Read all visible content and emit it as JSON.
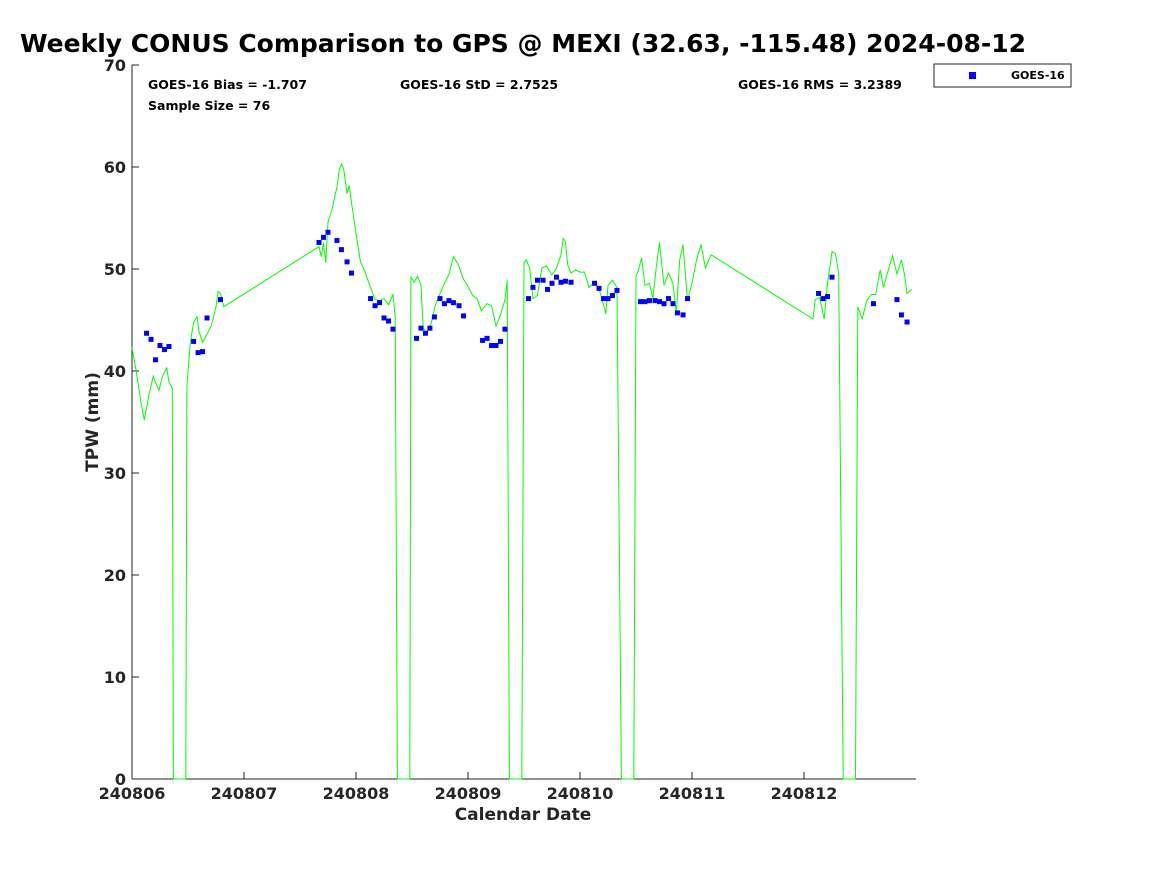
{
  "chart_data": {
    "type": "scatter",
    "title": "Weekly CONUS Comparison to GPS @ MEXI (32.63, -115.48) 2024-08-12",
    "xlabel": "Calendar Date",
    "ylabel": "TPW (mm)",
    "xlim": [
      240806,
      240813
    ],
    "ylim": [
      0,
      70
    ],
    "xticks": [
      "240806",
      "240807",
      "240808",
      "240809",
      "240810",
      "240811",
      "240812"
    ],
    "yticks": [
      0,
      10,
      20,
      30,
      40,
      50,
      60,
      70
    ],
    "legend": {
      "position": "top-right",
      "entries": [
        "GOES-16"
      ]
    },
    "stats": {
      "bias": "GOES-16 Bias = -1.707",
      "std": "GOES-16 StD = 2.7525",
      "rms": "GOES-16 RMS = 3.2389",
      "sample": "Sample Size = 76"
    },
    "series": [
      {
        "name": "GOES-16",
        "kind": "scatter",
        "color": "#0000ff",
        "points": [
          [
            240806.13,
            43.7
          ],
          [
            240806.17,
            43.1
          ],
          [
            240806.21,
            41.1
          ],
          [
            240806.25,
            42.5
          ],
          [
            240806.29,
            42.1
          ],
          [
            240806.33,
            42.4
          ],
          [
            240806.55,
            42.9
          ],
          [
            240806.59,
            41.8
          ],
          [
            240806.63,
            41.9
          ],
          [
            240806.67,
            45.2
          ],
          [
            240806.79,
            47.0
          ],
          [
            240807.67,
            52.6
          ],
          [
            240807.71,
            53.1
          ],
          [
            240807.75,
            53.6
          ],
          [
            240807.83,
            52.8
          ],
          [
            240807.87,
            51.9
          ],
          [
            240807.92,
            50.7
          ],
          [
            240807.96,
            49.6
          ],
          [
            240808.13,
            47.1
          ],
          [
            240808.17,
            46.4
          ],
          [
            240808.21,
            46.7
          ],
          [
            240808.25,
            45.2
          ],
          [
            240808.29,
            44.9
          ],
          [
            240808.33,
            44.1
          ],
          [
            240808.54,
            43.2
          ],
          [
            240808.58,
            44.2
          ],
          [
            240808.62,
            43.7
          ],
          [
            240808.66,
            44.2
          ],
          [
            240808.7,
            45.3
          ],
          [
            240808.75,
            47.1
          ],
          [
            240808.79,
            46.6
          ],
          [
            240808.83,
            46.9
          ],
          [
            240808.87,
            46.7
          ],
          [
            240808.92,
            46.4
          ],
          [
            240808.96,
            45.4
          ],
          [
            240809.13,
            43.0
          ],
          [
            240809.17,
            43.2
          ],
          [
            240809.21,
            42.5
          ],
          [
            240809.25,
            42.5
          ],
          [
            240809.29,
            42.9
          ],
          [
            240809.33,
            44.1
          ],
          [
            240809.54,
            47.1
          ],
          [
            240809.58,
            48.2
          ],
          [
            240809.62,
            48.9
          ],
          [
            240809.67,
            48.9
          ],
          [
            240809.71,
            48.0
          ],
          [
            240809.75,
            48.6
          ],
          [
            240809.79,
            49.2
          ],
          [
            240809.83,
            48.7
          ],
          [
            240809.87,
            48.8
          ],
          [
            240809.92,
            48.7
          ],
          [
            240810.13,
            48.6
          ],
          [
            240810.17,
            48.1
          ],
          [
            240810.21,
            47.1
          ],
          [
            240810.25,
            47.1
          ],
          [
            240810.29,
            47.4
          ],
          [
            240810.33,
            47.9
          ],
          [
            240810.54,
            46.8
          ],
          [
            240810.58,
            46.8
          ],
          [
            240810.62,
            46.9
          ],
          [
            240810.67,
            46.9
          ],
          [
            240810.71,
            46.8
          ],
          [
            240810.75,
            46.6
          ],
          [
            240810.79,
            47.1
          ],
          [
            240810.83,
            46.6
          ],
          [
            240810.87,
            45.7
          ],
          [
            240810.92,
            45.5
          ],
          [
            240810.96,
            47.1
          ],
          [
            240812.13,
            47.6
          ],
          [
            240812.17,
            47.1
          ],
          [
            240812.21,
            47.3
          ],
          [
            240812.25,
            49.2
          ],
          [
            240812.62,
            46.6
          ],
          [
            240812.83,
            47.0
          ],
          [
            240812.87,
            45.5
          ],
          [
            240812.92,
            44.8
          ]
        ]
      },
      {
        "name": "",
        "kind": "line",
        "color": "#00ff00",
        "points": [
          [
            240806.0,
            42.3
          ],
          [
            240806.04,
            39.8
          ],
          [
            240806.08,
            36.9
          ],
          [
            240806.11,
            35.2
          ],
          [
            240806.15,
            37.6
          ],
          [
            240806.19,
            39.5
          ],
          [
            240806.21,
            38.9
          ],
          [
            240806.24,
            38.1
          ],
          [
            240806.27,
            39.4
          ],
          [
            240806.31,
            40.3
          ],
          [
            240806.33,
            38.9
          ],
          [
            240806.36,
            38.3
          ],
          [
            240806.37,
            0
          ],
          [
            240806.48,
            0
          ],
          [
            240806.49,
            38.5
          ],
          [
            240806.52,
            42.7
          ],
          [
            240806.55,
            44.8
          ],
          [
            240806.58,
            45.3
          ],
          [
            240806.6,
            43.8
          ],
          [
            240806.63,
            42.8
          ],
          [
            240806.67,
            43.6
          ],
          [
            240806.71,
            44.5
          ],
          [
            240806.75,
            46.3
          ],
          [
            240806.77,
            47.8
          ],
          [
            240806.79,
            47.6
          ],
          [
            240806.82,
            46.3
          ],
          [
            240807.67,
            52.2
          ],
          [
            240807.69,
            51.2
          ],
          [
            240807.71,
            52.6
          ],
          [
            240807.73,
            50.6
          ],
          [
            240807.75,
            54.6
          ],
          [
            240807.79,
            56.0
          ],
          [
            240807.81,
            57.1
          ],
          [
            240807.83,
            58.0
          ],
          [
            240807.85,
            59.7
          ],
          [
            240807.87,
            60.3
          ],
          [
            240807.89,
            59.8
          ],
          [
            240807.92,
            57.4
          ],
          [
            240807.94,
            58.2
          ],
          [
            240807.96,
            56.5
          ],
          [
            240808.0,
            53.5
          ],
          [
            240808.04,
            50.7
          ],
          [
            240808.08,
            49.7
          ],
          [
            240808.12,
            48.5
          ],
          [
            240808.17,
            47.0
          ],
          [
            240808.21,
            46.9
          ],
          [
            240808.25,
            47.1
          ],
          [
            240808.29,
            46.5
          ],
          [
            240808.33,
            47.5
          ],
          [
            240808.35,
            45.3
          ],
          [
            240808.37,
            0
          ],
          [
            240808.48,
            0
          ],
          [
            240808.49,
            49.2
          ],
          [
            240808.52,
            48.7
          ],
          [
            240808.55,
            49.3
          ],
          [
            240808.58,
            48.4
          ],
          [
            240808.6,
            44.2
          ],
          [
            240808.63,
            43.8
          ],
          [
            240808.67,
            44.6
          ],
          [
            240808.71,
            46.5
          ],
          [
            240808.75,
            47.6
          ],
          [
            240808.79,
            48.6
          ],
          [
            240808.83,
            49.5
          ],
          [
            240808.87,
            51.2
          ],
          [
            240808.91,
            50.5
          ],
          [
            240808.96,
            49.0
          ],
          [
            240809.0,
            48.3
          ],
          [
            240809.04,
            47.4
          ],
          [
            240809.08,
            47.1
          ],
          [
            240809.12,
            45.9
          ],
          [
            240809.17,
            46.6
          ],
          [
            240809.21,
            46.4
          ],
          [
            240809.25,
            44.4
          ],
          [
            240809.29,
            45.5
          ],
          [
            240809.33,
            47.0
          ],
          [
            240809.35,
            48.9
          ],
          [
            240809.37,
            0
          ],
          [
            240809.48,
            0
          ],
          [
            240809.5,
            50.6
          ],
          [
            240809.52,
            50.9
          ],
          [
            240809.55,
            50.1
          ],
          [
            240809.58,
            47.1
          ],
          [
            240809.62,
            47.4
          ],
          [
            240809.66,
            50.1
          ],
          [
            240809.7,
            50.3
          ],
          [
            240809.75,
            49.4
          ],
          [
            240809.79,
            50.1
          ],
          [
            240809.83,
            51.4
          ],
          [
            240809.85,
            53.0
          ],
          [
            240809.87,
            52.7
          ],
          [
            240809.89,
            50.4
          ],
          [
            240809.92,
            49.6
          ],
          [
            240809.96,
            49.9
          ],
          [
            240810.0,
            49.7
          ],
          [
            240810.04,
            49.7
          ],
          [
            240810.08,
            48.2
          ],
          [
            240810.12,
            48.6
          ],
          [
            240810.17,
            48.1
          ],
          [
            240810.21,
            46.5
          ],
          [
            240810.23,
            45.6
          ],
          [
            240810.25,
            48.4
          ],
          [
            240810.29,
            48.9
          ],
          [
            240810.33,
            48.2
          ],
          [
            240810.37,
            0
          ],
          [
            240810.48,
            0
          ],
          [
            240810.5,
            49.3
          ],
          [
            240810.52,
            49.8
          ],
          [
            240810.55,
            51.1
          ],
          [
            240810.58,
            48.4
          ],
          [
            240810.62,
            48.6
          ],
          [
            240810.65,
            47.1
          ],
          [
            240810.68,
            50.1
          ],
          [
            240810.71,
            52.6
          ],
          [
            240810.75,
            48.4
          ],
          [
            240810.79,
            49.6
          ],
          [
            240810.83,
            48.6
          ],
          [
            240810.86,
            45.6
          ],
          [
            240810.89,
            50.9
          ],
          [
            240810.92,
            52.4
          ],
          [
            240810.96,
            46.9
          ],
          [
            240811.0,
            48.6
          ],
          [
            240811.04,
            50.9
          ],
          [
            240811.08,
            52.4
          ],
          [
            240811.12,
            50.1
          ],
          [
            240811.17,
            51.4
          ],
          [
            240812.08,
            45.1
          ],
          [
            240812.1,
            47.0
          ],
          [
            240812.14,
            47.2
          ],
          [
            240812.18,
            45.1
          ],
          [
            240812.21,
            48.6
          ],
          [
            240812.25,
            51.7
          ],
          [
            240812.28,
            51.5
          ],
          [
            240812.31,
            49.6
          ],
          [
            240812.35,
            0
          ],
          [
            240812.46,
            0
          ],
          [
            240812.48,
            46.3
          ],
          [
            240812.52,
            45.1
          ],
          [
            240812.56,
            46.9
          ],
          [
            240812.6,
            47.5
          ],
          [
            240812.64,
            47.5
          ],
          [
            240812.68,
            49.9
          ],
          [
            240812.71,
            48.2
          ],
          [
            240812.75,
            49.8
          ],
          [
            240812.79,
            51.3
          ],
          [
            240812.83,
            49.5
          ],
          [
            240812.87,
            50.9
          ],
          [
            240812.9,
            49.3
          ],
          [
            240812.92,
            47.6
          ],
          [
            240812.96,
            48.0
          ]
        ]
      }
    ]
  }
}
